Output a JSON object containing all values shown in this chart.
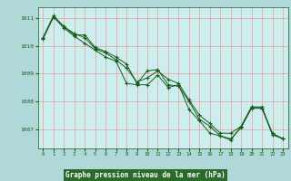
{
  "background_color": "#b0d8d8",
  "plot_bg_color": "#cceeee",
  "grid_color": "#ee9999",
  "line_color": "#1a5c1a",
  "xlabel": "Graphe pression niveau de la mer (hPa)",
  "xlabel_bg": "#2a6b2a",
  "xlabel_fg": "#ffffff",
  "ylim": [
    1006.3,
    1011.4
  ],
  "xlim": [
    -0.5,
    23.5
  ],
  "yticks": [
    1007,
    1008,
    1009,
    1010,
    1011
  ],
  "xticks": [
    0,
    1,
    2,
    3,
    4,
    5,
    6,
    7,
    8,
    9,
    10,
    11,
    12,
    13,
    14,
    15,
    16,
    17,
    18,
    19,
    20,
    21,
    22,
    23
  ],
  "series": [
    [
      1010.3,
      1011.05,
      1010.7,
      1010.45,
      1010.3,
      1009.9,
      1009.75,
      1009.5,
      1009.2,
      1008.7,
      1008.85,
      1009.1,
      1008.8,
      1008.65,
      1008.05,
      1007.5,
      1007.2,
      1006.85,
      1006.85,
      1007.1,
      1007.8,
      1007.8,
      1006.8,
      1006.65
    ],
    [
      1010.3,
      1011.1,
      1010.7,
      1010.4,
      1010.4,
      1009.95,
      1009.8,
      1009.6,
      1009.35,
      1008.65,
      1009.1,
      1009.15,
      1008.6,
      1008.55,
      1008.0,
      1007.35,
      1007.1,
      1006.75,
      1006.65,
      1007.05,
      1007.75,
      1007.75,
      1006.8,
      1006.65
    ],
    [
      1010.25,
      1011.05,
      1010.65,
      1010.35,
      1010.1,
      1009.85,
      1009.6,
      1009.45,
      1008.65,
      1008.6,
      1008.6,
      1008.95,
      1008.5,
      1008.6,
      1007.7,
      1007.3,
      1006.85,
      1006.75,
      1006.6,
      1007.1,
      1007.8,
      1007.75,
      1006.85,
      1006.65
    ]
  ]
}
